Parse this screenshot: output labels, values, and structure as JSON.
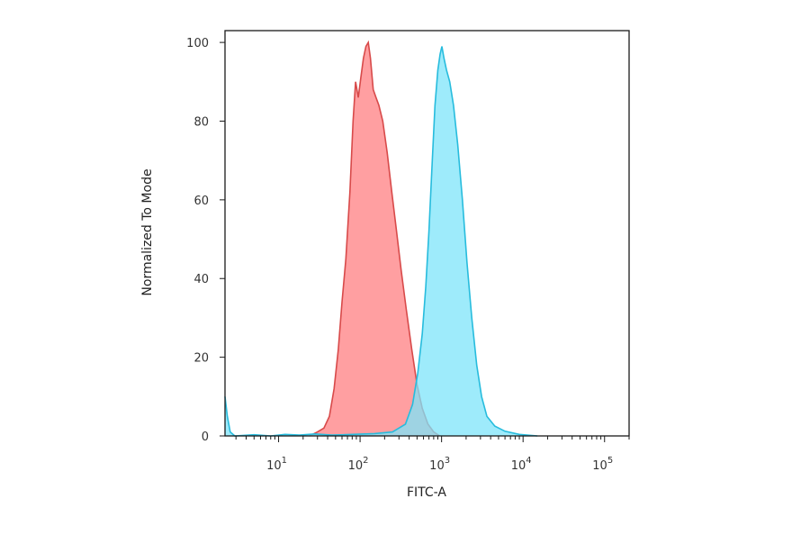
{
  "chart_data": {
    "type": "area",
    "title": "",
    "xlabel": "FITC-A",
    "ylabel": "Normalized To Mode",
    "x_scale": "log",
    "xlim": [
      2.2,
      200000
    ],
    "ylim": [
      0,
      103
    ],
    "grid": false,
    "legend": "none",
    "x_ticks": [
      {
        "base": "10",
        "exp": "1",
        "value": 10
      },
      {
        "base": "10",
        "exp": "2",
        "value": 100
      },
      {
        "base": "10",
        "exp": "3",
        "value": 1000
      },
      {
        "base": "10",
        "exp": "4",
        "value": 10000
      },
      {
        "base": "10",
        "exp": "5",
        "value": 100000
      }
    ],
    "y_ticks": [
      "0",
      "20",
      "40",
      "60",
      "80",
      "100"
    ],
    "series": [
      {
        "color_fill": "#ff9a9c",
        "color_line": "#d84a4a",
        "points": [
          [
            24,
            0
          ],
          [
            30,
            1
          ],
          [
            36,
            2
          ],
          [
            42,
            5
          ],
          [
            48,
            12
          ],
          [
            54,
            22
          ],
          [
            60,
            34
          ],
          [
            67,
            45
          ],
          [
            75,
            62
          ],
          [
            82,
            80
          ],
          [
            88,
            90
          ],
          [
            95,
            86
          ],
          [
            102,
            91
          ],
          [
            110,
            96
          ],
          [
            118,
            99
          ],
          [
            126,
            100
          ],
          [
            134,
            96
          ],
          [
            145,
            88
          ],
          [
            157,
            86
          ],
          [
            170,
            84
          ],
          [
            190,
            80
          ],
          [
            215,
            72
          ],
          [
            245,
            62
          ],
          [
            280,
            52
          ],
          [
            320,
            42
          ],
          [
            370,
            32
          ],
          [
            430,
            22
          ],
          [
            500,
            13
          ],
          [
            580,
            7
          ],
          [
            680,
            3
          ],
          [
            800,
            1
          ],
          [
            950,
            0
          ]
        ]
      },
      {
        "color_fill": "#7ee4f9",
        "color_line": "#27bcdd",
        "points": [
          [
            2.2,
            10
          ],
          [
            2.35,
            5
          ],
          [
            2.55,
            1
          ],
          [
            2.9,
            0
          ],
          [
            5,
            0.3
          ],
          [
            8,
            0
          ],
          [
            12,
            0.4
          ],
          [
            18,
            0.2
          ],
          [
            28,
            0.5
          ],
          [
            45,
            0.2
          ],
          [
            80,
            0.4
          ],
          [
            150,
            0.6
          ],
          [
            250,
            1
          ],
          [
            360,
            3
          ],
          [
            440,
            8
          ],
          [
            510,
            16
          ],
          [
            580,
            26
          ],
          [
            640,
            38
          ],
          [
            700,
            52
          ],
          [
            760,
            68
          ],
          [
            830,
            84
          ],
          [
            900,
            93
          ],
          [
            960,
            97
          ],
          [
            1010,
            99
          ],
          [
            1070,
            96
          ],
          [
            1150,
            93
          ],
          [
            1260,
            90
          ],
          [
            1400,
            84
          ],
          [
            1580,
            74
          ],
          [
            1800,
            60
          ],
          [
            2050,
            44
          ],
          [
            2350,
            30
          ],
          [
            2700,
            18
          ],
          [
            3100,
            10
          ],
          [
            3600,
            5
          ],
          [
            4500,
            2.5
          ],
          [
            6000,
            1.2
          ],
          [
            9000,
            0.4
          ],
          [
            15000,
            0
          ]
        ]
      }
    ]
  }
}
